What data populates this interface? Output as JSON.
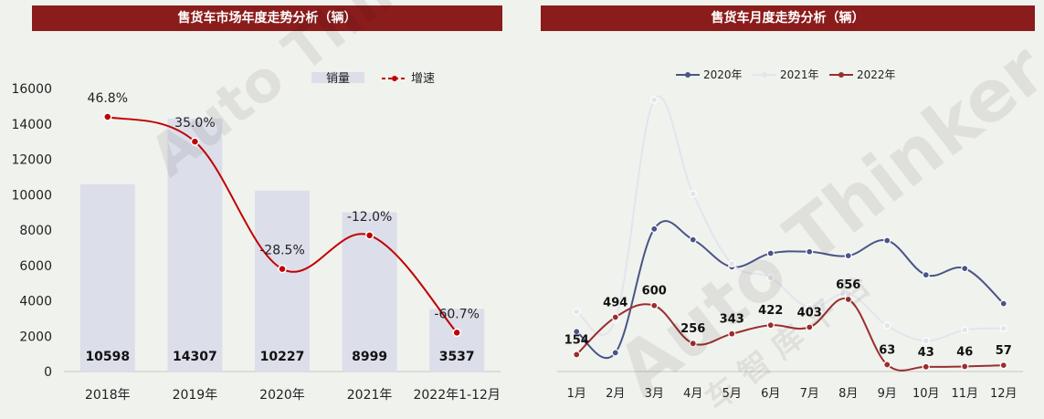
{
  "colors": {
    "title_bg": "#8b1c1c",
    "bar": "#dcdee9",
    "growth_line": "#c00000",
    "s2020": "#4a5488",
    "s2021": "#e3e4ee",
    "s2022": "#9a2e2e"
  },
  "watermark": {
    "text": "Auto Thinker",
    "cn": "车 智 库 平 台"
  },
  "left_chart": {
    "title": "售货车市场年度走势分析（辆）",
    "chart_data": {
      "type": "bar",
      "categories": [
        "2018年",
        "2019年",
        "2020年",
        "2021年",
        "2022年1-12月"
      ],
      "series": [
        {
          "name": "销量",
          "type": "bar",
          "values": [
            10598,
            14307,
            10227,
            8999,
            3537
          ]
        },
        {
          "name": "增速",
          "type": "line",
          "values_pct": [
            46.8,
            35.0,
            -28.5,
            -12.0,
            -60.7
          ],
          "labels": [
            "46.8%",
            "35.0%",
            "-28.5%",
            "-12.0%",
            "-60.7%"
          ]
        }
      ],
      "ylim": [
        0,
        16000
      ],
      "yticks": [
        0,
        2000,
        4000,
        6000,
        8000,
        10000,
        12000,
        14000,
        16000
      ],
      "growth_marker_y_equiv": [
        14400,
        13000,
        5800,
        7700,
        2200
      ],
      "legend_position": "top-right"
    }
  },
  "right_chart": {
    "title": "售货车月度走势分析（辆）",
    "chart_data": {
      "type": "line",
      "categories": [
        "1月",
        "2月",
        "3月",
        "4月",
        "5月",
        "6月",
        "7月",
        "8月",
        "9月",
        "10月",
        "11月",
        "12月"
      ],
      "series": [
        {
          "name": "2020年",
          "values": [
            1000,
            470,
            3570,
            3300,
            2620,
            2960,
            3000,
            2900,
            3280,
            2420,
            2580,
            1700
          ]
        },
        {
          "name": "2021年",
          "values": [
            1500,
            1300,
            6800,
            4450,
            2700,
            2350,
            1600,
            1950,
            1150,
            770,
            1040,
            1080
          ]
        },
        {
          "name": "2022年",
          "values": [
            154,
            494,
            600,
            256,
            343,
            422,
            403,
            656,
            63,
            43,
            46,
            57
          ],
          "labels": [
            "154",
            "494",
            "600",
            "256",
            "343",
            "422",
            "403",
            "656",
            "63",
            "43",
            "46",
            "57"
          ]
        }
      ],
      "legend_position": "top"
    }
  }
}
